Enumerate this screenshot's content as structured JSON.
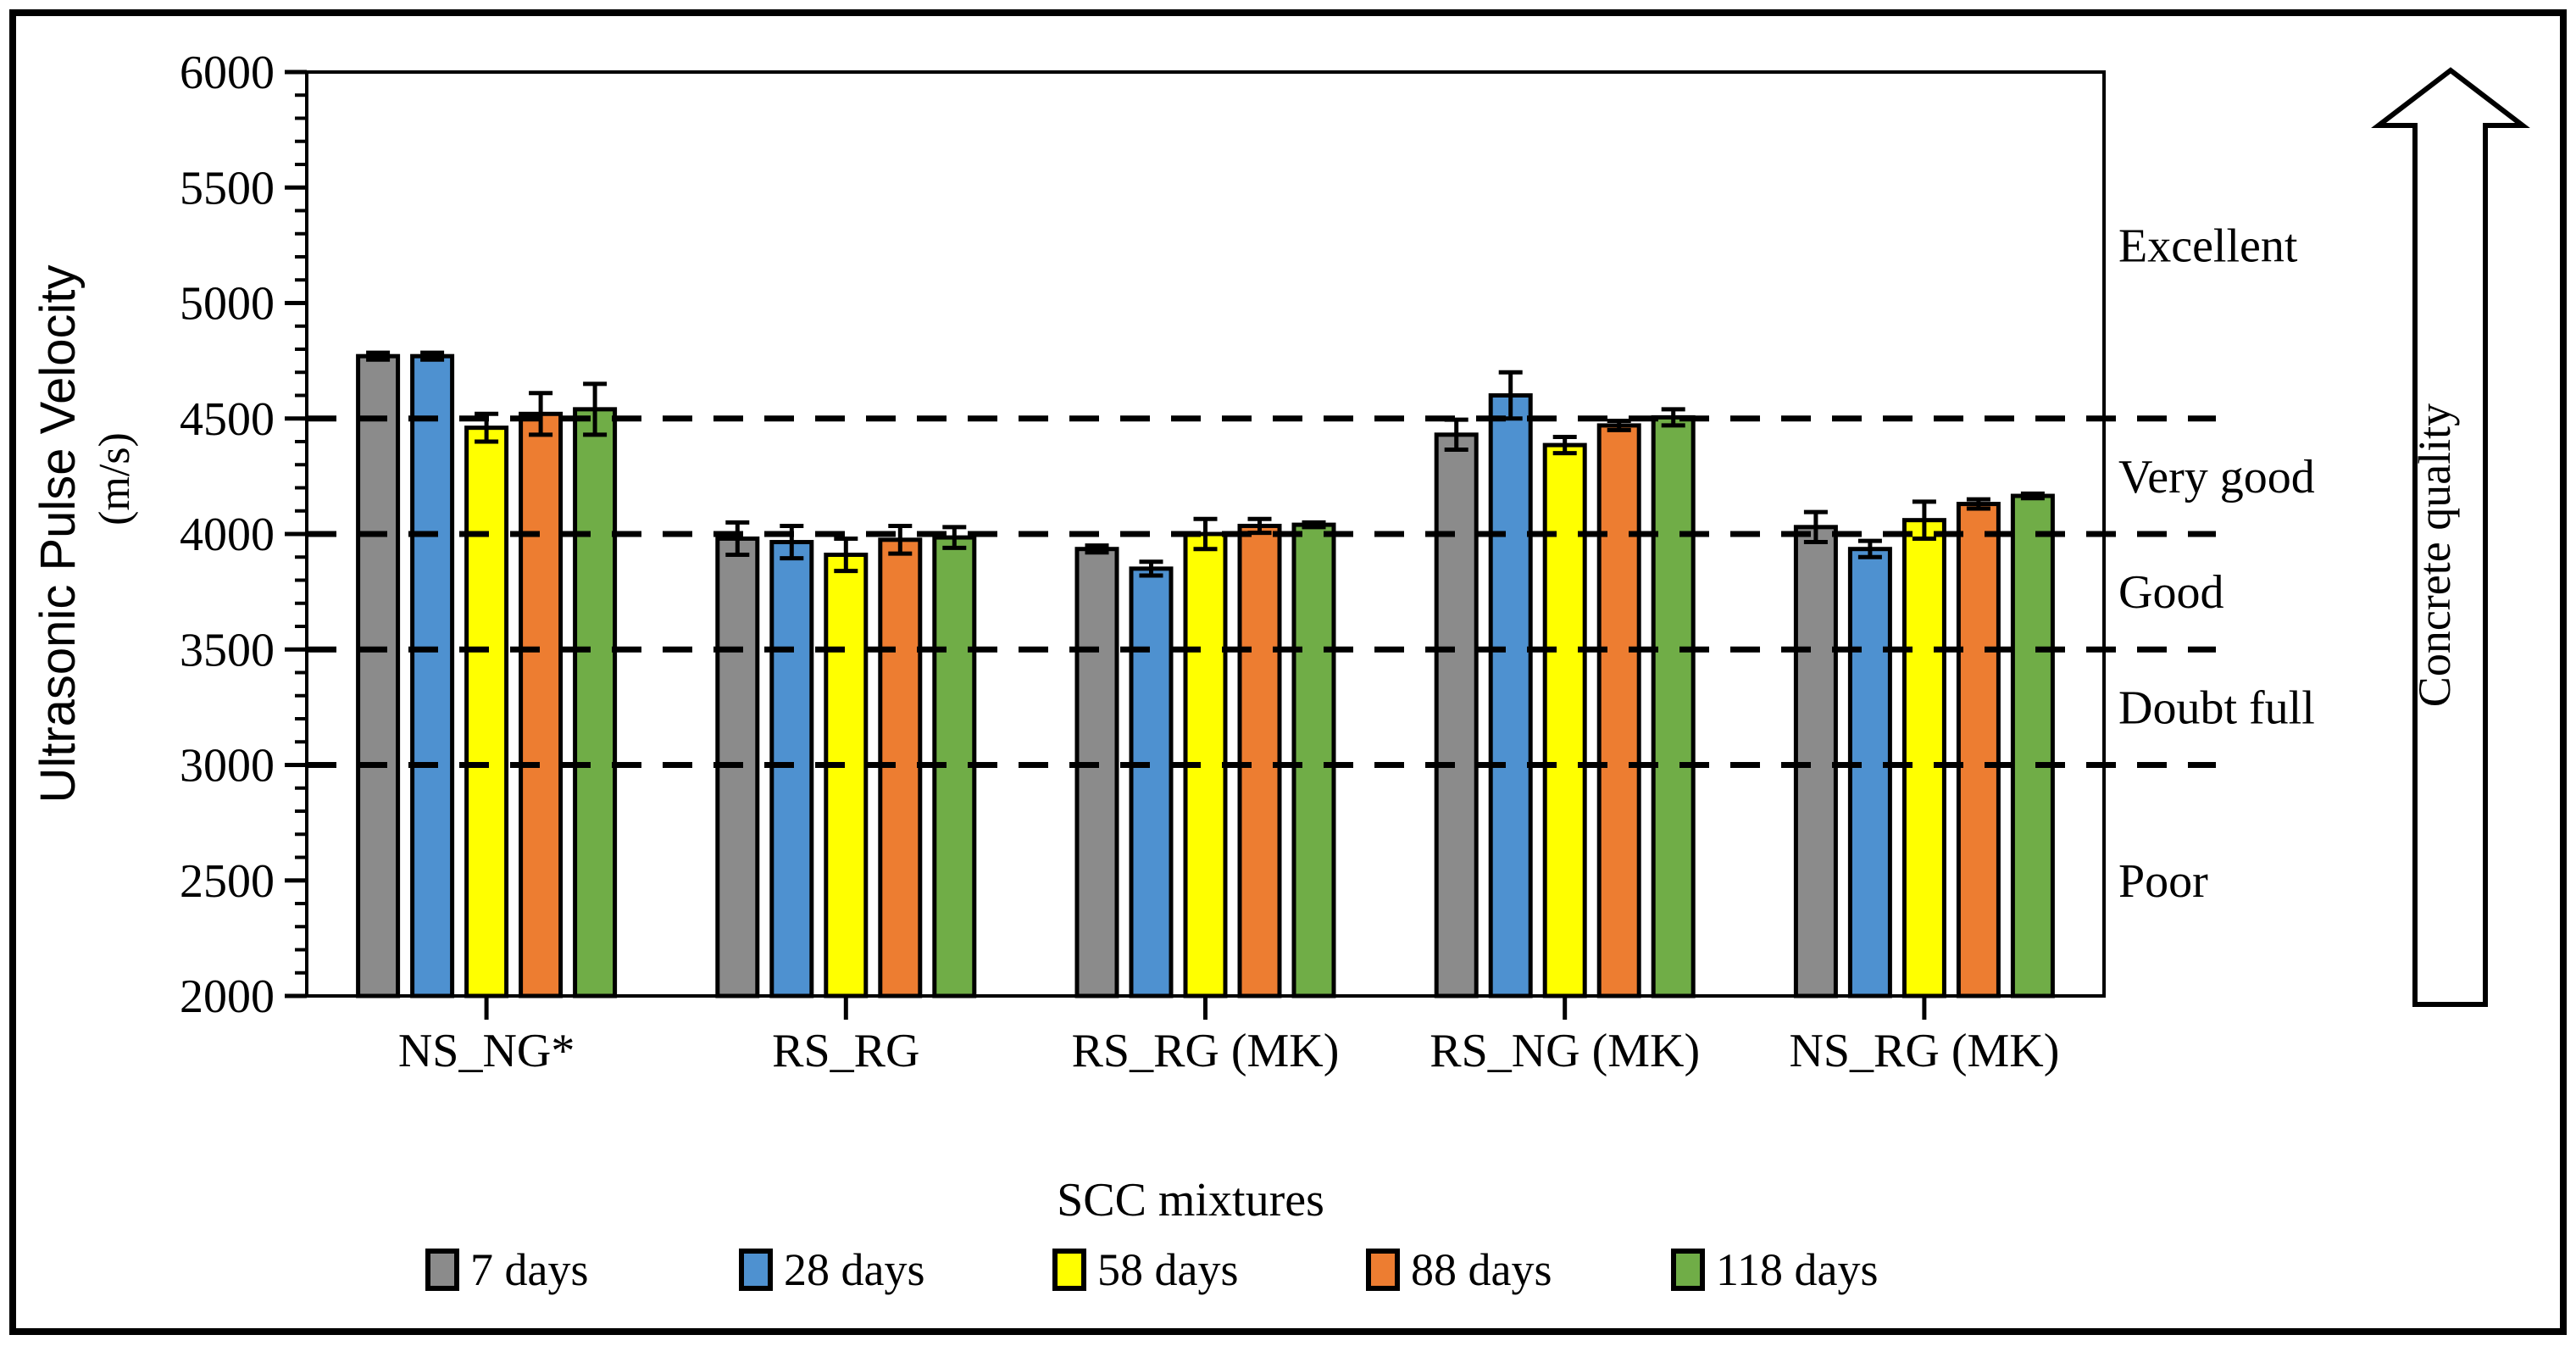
{
  "figure": {
    "background_color": "#ffffff",
    "border_color": "#000000"
  },
  "chart_data": {
    "type": "bar",
    "title": "",
    "xlabel": "SCC mixtures",
    "ylabel": "Ultrasonic Pulse Velocity",
    "ylabel_units": "(m/s)",
    "ylim": [
      2000,
      6000
    ],
    "ytick_step": 500,
    "yminor_step": 100,
    "ytick_labels": [
      "2000",
      "2500",
      "3000",
      "3500",
      "4000",
      "4500",
      "5000",
      "5500",
      "6000"
    ],
    "grid": "off",
    "legend_position": "bottom",
    "categories": [
      "NS_NG*",
      "RS_RG",
      "RS_RG (MK)",
      "RS_NG (MK)",
      "NS_RG (MK)"
    ],
    "series": [
      {
        "name": "7 days",
        "color": "#8B8B8B",
        "values": [
          4770,
          3980,
          3935,
          4430,
          4030
        ],
        "errors": [
          15,
          70,
          15,
          65,
          65
        ]
      },
      {
        "name": "28 days",
        "color": "#4E91D0",
        "values": [
          4770,
          3965,
          3850,
          4600,
          3935
        ],
        "errors": [
          15,
          70,
          30,
          100,
          35
        ]
      },
      {
        "name": "58 days",
        "color": "#FFFF00",
        "values": [
          4460,
          3910,
          4000,
          4385,
          4060
        ],
        "errors": [
          60,
          70,
          65,
          35,
          80
        ]
      },
      {
        "name": "88 days",
        "color": "#ED7D31",
        "values": [
          4520,
          3975,
          4035,
          4470,
          4130
        ],
        "errors": [
          90,
          60,
          30,
          20,
          20
        ]
      },
      {
        "name": "118 days",
        "color": "#70AD47",
        "values": [
          4540,
          3985,
          4040,
          4505,
          4165
        ],
        "errors": [
          110,
          45,
          10,
          35,
          10
        ]
      }
    ],
    "reference_lines": [
      4500,
      4000,
      3500,
      3000
    ],
    "quality_scale": {
      "labels": [
        {
          "text": "Excellent",
          "value": 5250
        },
        {
          "text": "Very good",
          "value": 4250
        },
        {
          "text": "Good",
          "value": 3750
        },
        {
          "text": "Doubt full",
          "value": 3250
        },
        {
          "text": "Poor",
          "value": 2500
        }
      ],
      "arrow_label": "Concrete quality"
    }
  }
}
